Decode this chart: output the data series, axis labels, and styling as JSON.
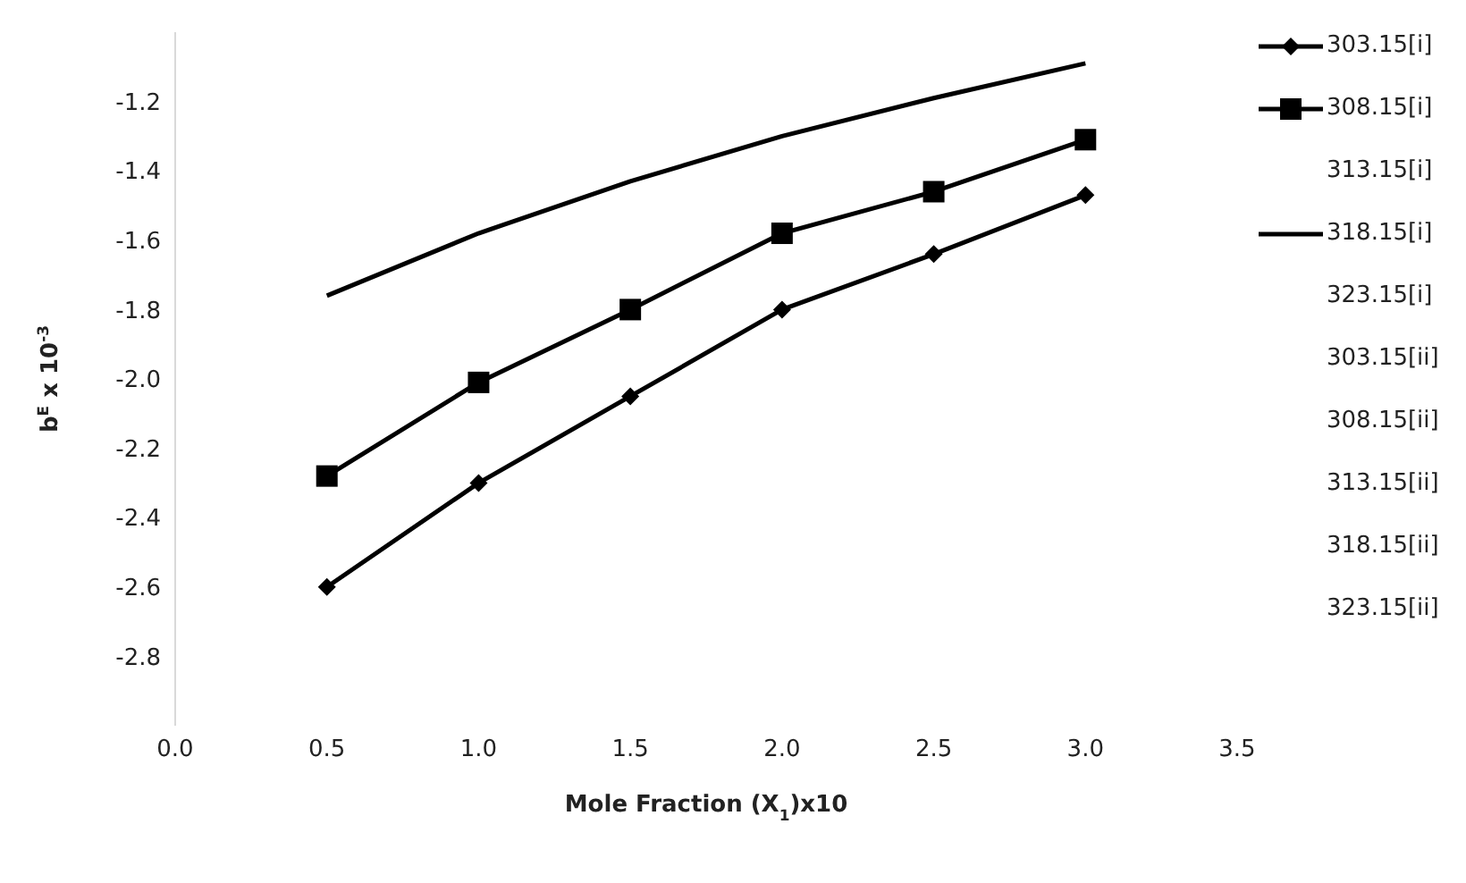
{
  "chart_data": {
    "type": "line",
    "xlabel": "Mole Fraction (X$_{1}$)x10",
    "ylabel": "b$^{E}$ x 10$^{-3}$",
    "x": [
      0.5,
      1.0,
      1.5,
      2.0,
      2.5,
      3.0
    ],
    "series": [
      {
        "name": "303.15[i]",
        "color": "#000000",
        "marker": "diamond",
        "values": [
          -2.6,
          -2.3,
          -2.05,
          -1.8,
          -1.64,
          -1.47
        ]
      },
      {
        "name": "308.15[i]",
        "color": "#000000",
        "marker": "square",
        "values": [
          -2.28,
          -2.01,
          -1.8,
          -1.58,
          -1.46,
          -1.31
        ]
      },
      {
        "name": "313.15[i]",
        "marker": "none",
        "values": [
          null,
          null,
          null,
          null,
          null,
          null
        ]
      },
      {
        "name": "318.15[i]",
        "color": "#000000",
        "marker": "none",
        "values": [
          -1.76,
          -1.58,
          -1.43,
          -1.3,
          -1.19,
          -1.09
        ]
      },
      {
        "name": "323.15[i]",
        "marker": "none",
        "values": [
          null,
          null,
          null,
          null,
          null,
          null
        ]
      },
      {
        "name": "303.15[ii]",
        "marker": "none",
        "values": [
          null,
          null,
          null,
          null,
          null,
          null
        ]
      },
      {
        "name": "308.15[ii]",
        "marker": "none",
        "values": [
          null,
          null,
          null,
          null,
          null,
          null
        ]
      },
      {
        "name": "313.15[ii]",
        "marker": "none",
        "values": [
          null,
          null,
          null,
          null,
          null,
          null
        ]
      },
      {
        "name": "318.15[ii]",
        "marker": "none",
        "values": [
          null,
          null,
          null,
          null,
          null,
          null
        ]
      },
      {
        "name": "323.15[ii]",
        "marker": "none",
        "values": [
          null,
          null,
          null,
          null,
          null,
          null
        ]
      }
    ],
    "xlim": [
      0,
      3.5
    ],
    "xticks": [
      {
        "value": 0,
        "label": "0.0"
      },
      {
        "value": 0.5,
        "label": "0.5"
      },
      {
        "value": 1,
        "label": "1.0"
      },
      {
        "value": 1.5,
        "label": "1.5"
      },
      {
        "value": 2,
        "label": "2.0"
      },
      {
        "value": 2.5,
        "label": "2.5"
      },
      {
        "value": 3,
        "label": "3.0"
      },
      {
        "value": 3.5,
        "label": "3.5"
      }
    ],
    "ylim": [
      -3.0,
      -1.0
    ],
    "yticks": [
      {
        "value": -2.8,
        "label": "-2.8"
      },
      {
        "value": -2.6,
        "label": "-2.6"
      },
      {
        "value": -2.4,
        "label": "-2.4"
      },
      {
        "value": -2.2,
        "label": "-2.2"
      },
      {
        "value": -2,
        "label": "-2.0"
      },
      {
        "value": -1.8,
        "label": "-1.8"
      },
      {
        "value": -1.6,
        "label": "-1.6"
      },
      {
        "value": -1.4,
        "label": "-1.4"
      },
      {
        "value": -1.2,
        "label": "-1.2"
      }
    ],
    "grid": false,
    "legend": "right",
    "line_style": "solid"
  }
}
